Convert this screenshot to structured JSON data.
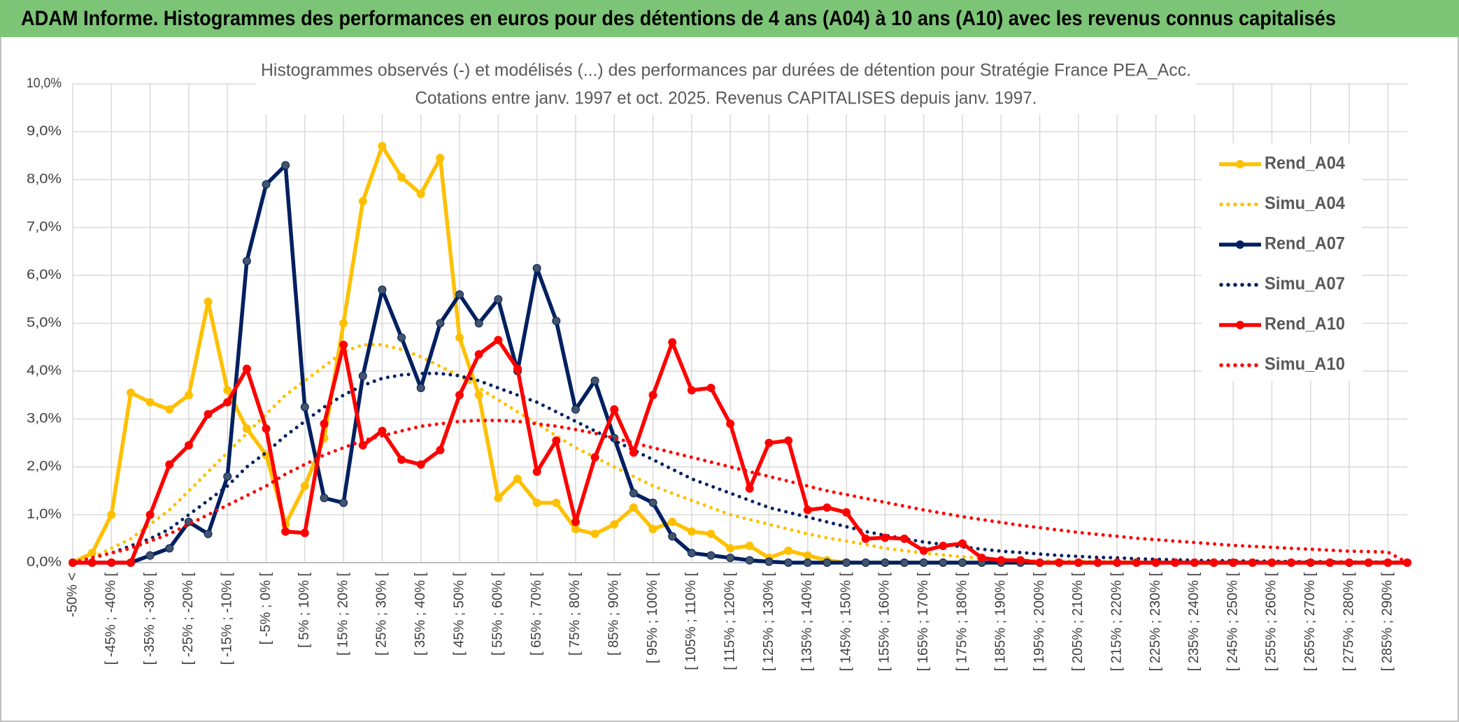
{
  "chart_data": {
    "type": "line",
    "title": "ADAM Informe. Histogrammes des performances en euros pour des détentions de 4 ans (A04) à 10 ans (A10) avec les revenus connus capitalisés",
    "subtitle": [
      "Histogrammes observés (-) et modélisés (...) des performances par durées de détention pour Stratégie France PEA_Acc.",
      "Cotations entre janv. 1997 et oct. 2025. Revenus CAPITALISES depuis janv. 1997."
    ],
    "categories": [
      "-50% <",
      null,
      "[ -45% ; -40% [",
      null,
      "[ -35% ; -30% [",
      null,
      "[ -25% ; -20% [",
      null,
      "[ -15% ; -10% [",
      null,
      "[ -5% ; 0% [",
      null,
      "[ 5% ; 10% [",
      null,
      "[ 15% ; 20% [",
      null,
      "[ 25% ; 30% [",
      null,
      "[ 35% ; 40% [",
      null,
      "[ 45% ; 50% [",
      null,
      "[ 55% ; 60% [",
      null,
      "[ 65% ; 70% [",
      null,
      "[ 75% ; 80% [",
      null,
      "[ 85% ; 90% [",
      null,
      "[ 95% ; 100% [",
      null,
      "[ 105% ; 110% [",
      null,
      "[ 115% ; 120% [",
      null,
      "[ 125% ; 130% [",
      null,
      "[ 135% ; 140% [",
      null,
      "[ 145% ; 150% [",
      null,
      "[ 155% ; 160% [",
      null,
      "[ 165% ; 170% [",
      null,
      "[ 175% ; 180% [",
      null,
      "[ 185% ; 190% [",
      null,
      "[ 195% ; 200% [",
      null,
      "[ 205% ; 210% [",
      null,
      "[ 215% ; 220% [",
      null,
      "[ 225% ; 230% [",
      null,
      "[ 235% ; 240% [",
      null,
      "[ 245% ; 250% [",
      null,
      "[ 255% ; 260% [",
      null,
      "[ 265% ; 270% [",
      null,
      "[ 275% ; 280% [",
      null,
      "[ 285% ; 290% [",
      null
    ],
    "series": [
      {
        "name": "Rend_A04",
        "color": "#ffc000",
        "style": "solid",
        "markers": true,
        "values": [
          0,
          0.2,
          1.0,
          3.55,
          3.35,
          3.2,
          3.5,
          5.45,
          3.6,
          2.8,
          2.25,
          0.8,
          1.6,
          2.6,
          5.0,
          7.55,
          8.7,
          8.05,
          7.7,
          8.45,
          4.7,
          3.5,
          1.35,
          1.75,
          1.25,
          1.25,
          0.7,
          0.6,
          0.8,
          1.15,
          0.7,
          0.85,
          0.65,
          0.6,
          0.3,
          0.35,
          0.1,
          0.25,
          0.15,
          0.05,
          0,
          0,
          0,
          0,
          0,
          0,
          0,
          0,
          0,
          0,
          0,
          0,
          0,
          0,
          0,
          0,
          0,
          0,
          0,
          0,
          0,
          0,
          0,
          0,
          0,
          0,
          0,
          0,
          0,
          0
        ]
      },
      {
        "name": "Simu_A04",
        "color": "#ffc000",
        "style": "dotted",
        "markers": false,
        "values": [
          0,
          0.1,
          0.3,
          0.5,
          0.8,
          1.1,
          1.5,
          1.9,
          2.3,
          2.7,
          3.1,
          3.5,
          3.8,
          4.1,
          4.4,
          4.55,
          4.55,
          4.45,
          4.3,
          4.1,
          3.9,
          3.65,
          3.4,
          3.15,
          2.9,
          2.65,
          2.4,
          2.2,
          2.0,
          1.8,
          1.6,
          1.45,
          1.3,
          1.15,
          1.0,
          0.9,
          0.8,
          0.7,
          0.6,
          0.52,
          0.45,
          0.38,
          0.3,
          0.25,
          0.2,
          0.16,
          0.12,
          0.09,
          0.07,
          0.05,
          0.04,
          0.03,
          0.03,
          0.02,
          0.02,
          0.02,
          0.01,
          0.01,
          0.01,
          0.01,
          0.01,
          0.01,
          0.01,
          0.01,
          0.01,
          0.01,
          0.01,
          0.01,
          0.01,
          0.01
        ]
      },
      {
        "name": "Rend_A07",
        "color": "#002060",
        "style": "solid",
        "markers": true,
        "values": [
          0,
          0,
          0,
          0,
          0.15,
          0.3,
          0.85,
          0.6,
          1.8,
          6.3,
          7.9,
          8.3,
          3.25,
          1.35,
          1.25,
          3.9,
          5.7,
          4.7,
          3.65,
          5.0,
          5.6,
          5.0,
          5.5,
          4.0,
          6.15,
          5.05,
          3.2,
          3.8,
          2.6,
          1.45,
          1.25,
          0.55,
          0.2,
          0.15,
          0.1,
          0.05,
          0.02,
          0,
          0,
          0,
          0,
          0,
          0,
          0,
          0,
          0,
          0,
          0,
          0,
          0,
          0,
          0,
          0,
          0,
          0,
          0,
          0,
          0,
          0,
          0,
          0,
          0,
          0,
          0,
          0,
          0,
          0,
          0,
          0,
          0
        ]
      },
      {
        "name": "Simu_A07",
        "color": "#002060",
        "style": "dotted",
        "markers": false,
        "values": [
          0,
          0.1,
          0.2,
          0.35,
          0.5,
          0.7,
          1.0,
          1.3,
          1.6,
          2.0,
          2.3,
          2.65,
          2.95,
          3.25,
          3.5,
          3.7,
          3.85,
          3.92,
          3.95,
          3.95,
          3.9,
          3.8,
          3.65,
          3.5,
          3.35,
          3.15,
          2.95,
          2.75,
          2.55,
          2.35,
          2.15,
          1.95,
          1.75,
          1.6,
          1.45,
          1.3,
          1.15,
          1.05,
          0.95,
          0.85,
          0.75,
          0.65,
          0.57,
          0.5,
          0.43,
          0.38,
          0.33,
          0.28,
          0.24,
          0.21,
          0.18,
          0.15,
          0.13,
          0.11,
          0.1,
          0.08,
          0.07,
          0.06,
          0.05,
          0.04,
          0.04,
          0.03,
          0.03,
          0.02,
          0.02,
          0.02,
          0.01,
          0.01,
          0.01,
          0.01
        ]
      },
      {
        "name": "Rend_A10",
        "color": "#ff0000",
        "style": "solid",
        "markers": true,
        "values": [
          0,
          0,
          0,
          0,
          1.0,
          2.05,
          2.45,
          3.1,
          3.35,
          4.05,
          2.8,
          0.65,
          0.62,
          2.9,
          4.55,
          2.45,
          2.75,
          2.15,
          2.05,
          2.35,
          3.5,
          4.35,
          4.65,
          4.05,
          1.9,
          2.55,
          0.85,
          2.2,
          3.2,
          2.3,
          3.5,
          4.6,
          3.6,
          3.65,
          2.9,
          1.55,
          2.5,
          2.55,
          1.1,
          1.15,
          1.05,
          0.5,
          0.52,
          0.5,
          0.25,
          0.35,
          0.4,
          0.1,
          0.05,
          0.05,
          0,
          0,
          0,
          0,
          0,
          0,
          0,
          0,
          0,
          0,
          0,
          0,
          0,
          0,
          0,
          0,
          0,
          0,
          0,
          0
        ]
      },
      {
        "name": "Simu_A10",
        "color": "#ff0000",
        "style": "dotted",
        "markers": false,
        "values": [
          0,
          0.1,
          0.2,
          0.3,
          0.45,
          0.6,
          0.8,
          1.0,
          1.2,
          1.4,
          1.6,
          1.85,
          2.05,
          2.25,
          2.4,
          2.55,
          2.65,
          2.75,
          2.85,
          2.9,
          2.95,
          2.97,
          2.97,
          2.95,
          2.9,
          2.85,
          2.78,
          2.7,
          2.6,
          2.5,
          2.4,
          2.3,
          2.2,
          2.1,
          2.0,
          1.9,
          1.8,
          1.7,
          1.6,
          1.5,
          1.42,
          1.34,
          1.26,
          1.18,
          1.1,
          1.03,
          0.96,
          0.9,
          0.84,
          0.78,
          0.73,
          0.68,
          0.63,
          0.59,
          0.55,
          0.51,
          0.48,
          0.45,
          0.42,
          0.39,
          0.36,
          0.34,
          0.32,
          0.3,
          0.28,
          0.26,
          0.24,
          0.23,
          0.22,
          0
        ]
      }
    ],
    "ylim": [
      0,
      10
    ],
    "yticks": [
      {
        "value": 0,
        "label": "0,0%"
      },
      {
        "value": 1,
        "label": "1,0%"
      },
      {
        "value": 2,
        "label": "2,0%"
      },
      {
        "value": 3,
        "label": "3,0%"
      },
      {
        "value": 4,
        "label": "4,0%"
      },
      {
        "value": 5,
        "label": "5,0%"
      },
      {
        "value": 6,
        "label": "6,0%"
      },
      {
        "value": 7,
        "label": "7,0%"
      },
      {
        "value": 8,
        "label": "8,0%"
      },
      {
        "value": 9,
        "label": "9,0%"
      },
      {
        "value": 10,
        "label": "10,0%"
      }
    ],
    "grid": true,
    "legend": "right",
    "title_color": "#7cc576"
  }
}
